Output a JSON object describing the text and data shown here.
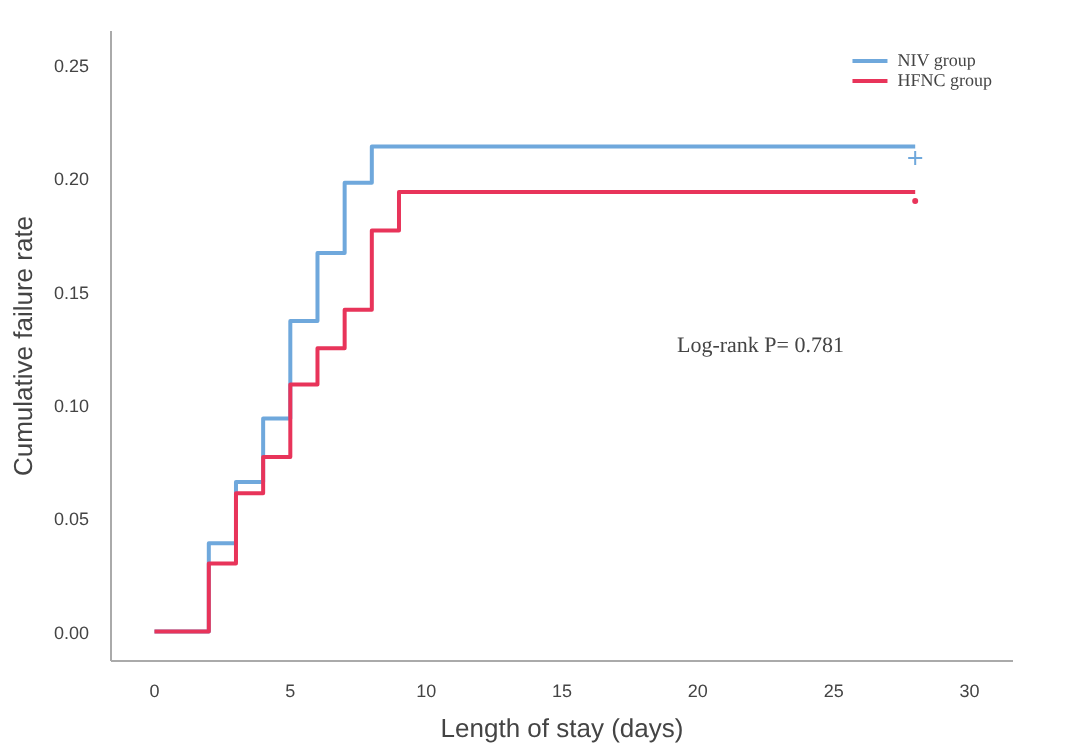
{
  "chart_data": {
    "type": "step",
    "xlabel": "Length of stay (days)",
    "ylabel": "Cumulative failure rate",
    "xlim": [
      -1.6,
      31.6
    ],
    "ylim": [
      -0.013,
      0.265
    ],
    "xticks": [
      0,
      5,
      10,
      15,
      20,
      25,
      30
    ],
    "yticks": [
      {
        "value": 0,
        "label": "0.00"
      },
      {
        "value": 0.05,
        "label": "0.05"
      },
      {
        "value": 0.1,
        "label": "0.10"
      },
      {
        "value": 0.15,
        "label": "0.15"
      },
      {
        "value": 0.2,
        "label": "0.20"
      },
      {
        "value": 0.25,
        "label": "0.25"
      }
    ],
    "grid": false,
    "legend": "top right",
    "line_style": "solid",
    "annotations": [
      "Log-rank P= 0.781"
    ],
    "series": [
      {
        "name": "NIV group",
        "color": "#6fa8dc",
        "x": [
          0,
          2,
          3,
          4,
          5,
          6,
          7,
          8,
          28
        ],
        "values": [
          0,
          0.039,
          0.066,
          0.094,
          0.137,
          0.167,
          0.198,
          0.214,
          0.214
        ]
      },
      {
        "name": "HFNC group",
        "color": "#e8345a",
        "x": [
          0,
          2,
          3,
          4,
          5,
          6,
          7,
          8,
          9,
          28
        ],
        "values": [
          0,
          0.03,
          0.061,
          0.077,
          0.109,
          0.125,
          0.142,
          0.177,
          0.194,
          0.194
        ]
      },
      {
        "type": "scatter",
        "marker": "cross",
        "color": "#6fa8dc",
        "x": [
          28
        ],
        "values": [
          0.209
        ]
      },
      {
        "type": "scatter",
        "marker": "circle",
        "color": "#e8345a",
        "x": [
          28
        ],
        "values": [
          0.19
        ]
      }
    ]
  }
}
